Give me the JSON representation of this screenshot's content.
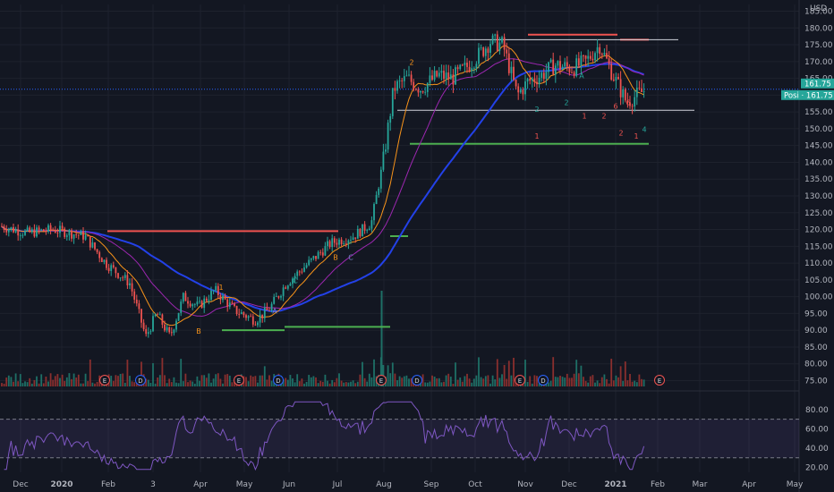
{
  "chart_data": {
    "type": "candlestick",
    "currency": "USD",
    "last_price": "161.75",
    "price_tag_label": "Posi",
    "x_tick_labels": [
      "Dec",
      "2020",
      "Feb",
      "3",
      "Apr",
      "May",
      "Jun",
      "Jul",
      "Aug",
      "Sep",
      "Oct",
      "Nov",
      "Dec",
      "2021",
      "Feb",
      "Mar",
      "Apr",
      "May"
    ],
    "y_ticks": [
      75,
      80,
      85,
      90,
      95,
      100,
      105,
      110,
      115,
      120,
      125,
      130,
      135,
      140,
      145,
      150,
      155,
      160,
      165,
      170,
      175,
      180,
      185
    ],
    "ylim": [
      73,
      187
    ],
    "rsi_ticks": [
      20,
      40,
      60,
      80
    ],
    "rsi_ylim": [
      15,
      90
    ],
    "rsi_bands": [
      30,
      70
    ],
    "earnings_marker": "E",
    "dividend_marker": "D",
    "monthly_closes": [
      {
        "m": "Dec 2019",
        "v": 121
      },
      {
        "m": "Jan 2020",
        "v": 118
      },
      {
        "m": "Feb 2020",
        "v": 108
      },
      {
        "m": "Mar 2020",
        "v": 95
      },
      {
        "m": "Apr 2020",
        "v": 100
      },
      {
        "m": "May 2020",
        "v": 97
      },
      {
        "m": "Jun 2020",
        "v": 104
      },
      {
        "m": "Jul 2020",
        "v": 118
      },
      {
        "m": "Aug 2020",
        "v": 166
      },
      {
        "m": "Sep 2020",
        "v": 165
      },
      {
        "m": "Oct 2020",
        "v": 174
      },
      {
        "m": "Nov 2020",
        "v": 160
      },
      {
        "m": "Dec 2020",
        "v": 170
      },
      {
        "m": "Jan 2021",
        "v": 161.75
      }
    ],
    "colors": {
      "background": "#131722",
      "up": "#26a69a",
      "down": "#ef5350",
      "ema_orange": "#f7931a",
      "sma_purple": "#9c27b0",
      "sma_blue": "#2341e8",
      "rsi_line": "#7e57c2",
      "resistance": "#ef5350",
      "support": "#4caf50",
      "last_price": "#26a69a"
    }
  }
}
